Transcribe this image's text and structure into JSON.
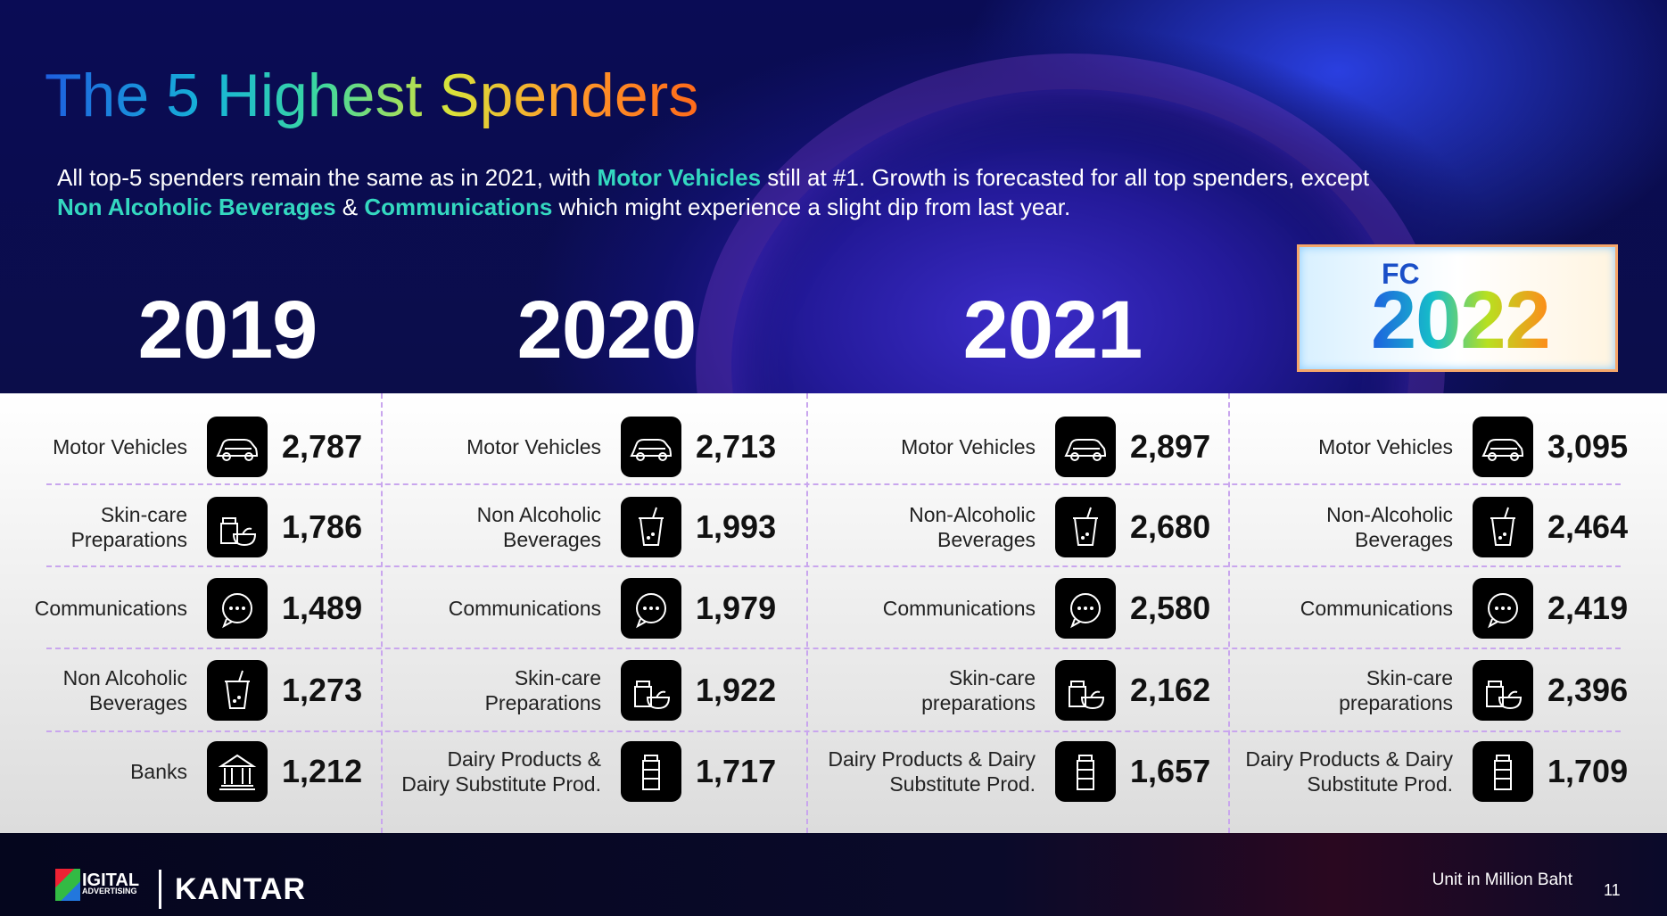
{
  "title": "The 5 Highest Spenders",
  "subtitle": [
    {
      "text": "All top-5 spenders remain the same as in 2021, with ",
      "highlight": false
    },
    {
      "text": "Motor Vehicles",
      "highlight": true
    },
    {
      "text": " still at #1. Growth is forecasted for all top spenders, except ",
      "highlight": false
    },
    {
      "text": "Non Alcoholic Beverages",
      "highlight": true
    },
    {
      "text": " & ",
      "highlight": false
    },
    {
      "text": "Communications",
      "highlight": true
    },
    {
      "text": " which might experience a slight dip from last year.",
      "highlight": false
    }
  ],
  "columns": [
    {
      "year": "2019",
      "items": [
        {
          "name": [
            "Motor Vehicles"
          ],
          "value": "2,787"
        },
        {
          "name": [
            "Skin-care",
            "Preparations"
          ],
          "value": "1,786"
        },
        {
          "name": [
            "Communications"
          ],
          "value": "1,489"
        },
        {
          "name": [
            "Non Alcoholic",
            "Beverages"
          ],
          "value": "1,273"
        },
        {
          "name": [
            "Banks"
          ],
          "value": "1,212"
        }
      ]
    },
    {
      "year": "2020",
      "items": [
        {
          "name": [
            "Motor Vehicles"
          ],
          "value": "2,713"
        },
        {
          "name": [
            "Non Alcoholic",
            "Beverages"
          ],
          "value": "1,993"
        },
        {
          "name": [
            "Communications"
          ],
          "value": "1,979"
        },
        {
          "name": [
            "Skin-care",
            "Preparations"
          ],
          "value": "1,922"
        },
        {
          "name": [
            "Dairy Products &",
            "Dairy Substitute Prod."
          ],
          "value": "1,717"
        }
      ]
    },
    {
      "year": "2021",
      "items": [
        {
          "name": [
            "Motor Vehicles"
          ],
          "value": "2,897"
        },
        {
          "name": [
            "Non-Alcoholic",
            "Beverages"
          ],
          "value": "2,680"
        },
        {
          "name": [
            "Communications"
          ],
          "value": "2,580"
        },
        {
          "name": [
            "Skin-care",
            "preparations"
          ],
          "value": "2,162"
        },
        {
          "name": [
            "Dairy Products & Dairy",
            "Substitute Prod."
          ],
          "value": "1,657"
        }
      ]
    },
    {
      "fc": "FC",
      "year": "2022",
      "items": [
        {
          "name": [
            "Motor Vehicles"
          ],
          "value": "3,095"
        },
        {
          "name": [
            "Non-Alcoholic",
            "Beverages"
          ],
          "value": "2,464"
        },
        {
          "name": [
            "Communications"
          ],
          "value": "2,419"
        },
        {
          "name": [
            "Skin-care",
            "preparations"
          ],
          "value": "2,396"
        },
        {
          "name": [
            "Dairy Products & Dairy",
            "Substitute Prod."
          ],
          "value": "1,709"
        }
      ]
    }
  ],
  "footer": {
    "logo_text": [
      "IGITAL",
      "ADVERTISING"
    ],
    "brand": "KANTAR",
    "unit": "Unit in Million Baht",
    "page": "11"
  }
}
